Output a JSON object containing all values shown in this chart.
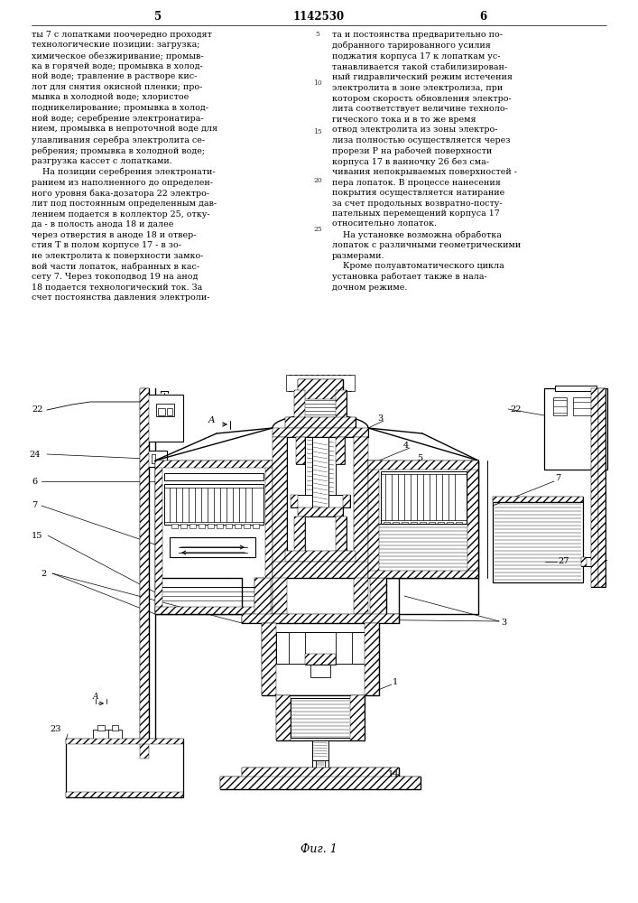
{
  "page_number_left": "5",
  "page_number_center": "1142530",
  "page_number_right": "6",
  "text_left": "ты 7 с лопатками поочередно проходят\nтехнологические позиции: загрузка;\nхимическое обезжиривание; промыв-\nка в горячей воде; промывка в холод-\nной воде; травление в растворе кис-\nлот для снятия окисной пленки; про-\nмывка в холодной воде; хлористое\nподникелирование; промывка в холод-\nной воде; серебрение электронатира-\nнием, промывка в непроточной воде для\nулавливания серебра электролита се-\nребрения; промывка в холодной воде;\nразгрузка кассет с лопатками.\n    На позиции серебрения электронати-\nранием из наполненного до определен-\nного уровня бака-дозатора 22 электро-\nлит под постоянным определенным дав-\nлением подается в коллектор 25, отку-\nда - в полость анода 18 и далее\nчерез отверстия в аноде 18 и отвер-\nстия Т в полом корпусе 17 - в зо-\nне электролита к поверхности замко-\nвой части лопаток, набранных в кас-\nсету 7. Через токоподвод 19 на анод\n18 подается технологический ток. За\nсчет постоянства давления электроли-",
  "text_right": "та и постоянства предварительно по-\nдобранного тарированного усилия\nподжатия корпуса 17 к лопаткам ус-\nтанавливается такой стабилизирован-\nный гидравлический режим истечения\nэлектролита в зоне электролиза, при\nкотором скорость обновления электро-\nлита соответствует величине техноло-\nгического тока и в то же время\nотвод электролита из зоны электро-\nлиза полностью осуществляется через\nпрорези Р на рабочей поверхности\nкорпуса 17 в ванночку 26 без сма-\nчивания непокрываемых поверхностей -\nпера лопаток. В процессе нанесения\nпокрытия осуществляется натирание\nза счет продольных возвратно-посту-\nпательных перемещений корпуса 17\nотносительно лопаток.\n    На установке возможна обработка\nлопаток с различными геометрическими\nразмерами.\n    Кроме полуавтоматического цикла\nустановка работает также в нала-\nдочном режиме.",
  "fig_label": "Фиг. 1",
  "bg_color": "#ffffff",
  "text_color": "#000000",
  "line_numbers_left": "5\n\n\n\n10\n\n\n\n15\n\n\n\n20\n\n\n\n25",
  "font_size_text": 6.8,
  "font_size_header": 8.5,
  "font_size_fig": 9.0,
  "font_size_linenum": 6.0
}
